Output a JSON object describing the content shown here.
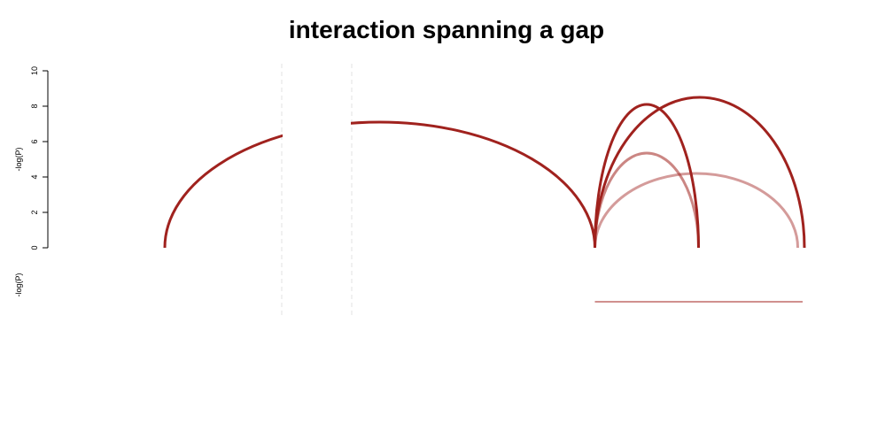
{
  "chart_data": {
    "type": "arc",
    "title": "interaction spanning a gap",
    "ylabel": "-log(P)",
    "ylabel_lower": "-log(P)",
    "ylim": [
      0,
      10
    ],
    "yticks": [
      "0",
      "2",
      "4",
      "6",
      "8",
      "10"
    ],
    "gap": {
      "start": 0.4,
      "end": 0.6
    },
    "xlim": [
      0,
      3
    ],
    "arcs": [
      {
        "x0": -0.8,
        "x1": 1.15,
        "peak": 7.1,
        "color": "#a0221e",
        "opacity": 1.0,
        "width": 3.0
      },
      {
        "x0": 1.15,
        "x1": 1.62,
        "peak": 8.1,
        "color": "#a0221e",
        "opacity": 1.0,
        "width": 3.0
      },
      {
        "x0": 1.15,
        "x1": 2.1,
        "peak": 8.5,
        "color": "#a0221e",
        "opacity": 1.0,
        "width": 3.0
      },
      {
        "x0": 1.15,
        "x1": 1.62,
        "peak": 5.35,
        "color": "#a0221e",
        "opacity": 0.55,
        "width": 3.0
      },
      {
        "x0": 1.15,
        "x1": 2.07,
        "peak": 4.2,
        "color": "#a0221e",
        "opacity": 0.45,
        "width": 3.0
      }
    ],
    "lower_segments": [
      {
        "x0": 1.15,
        "x1": 2.1,
        "color": "#a0221e"
      }
    ]
  }
}
